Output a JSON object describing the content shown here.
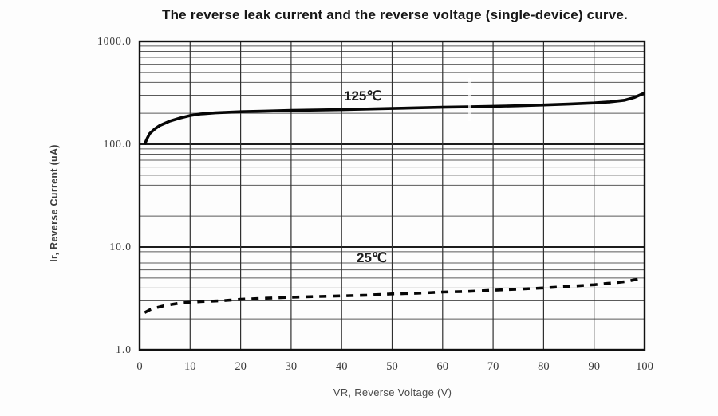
{
  "title": "The reverse leak current and the reverse voltage (single-device) curve.",
  "chart_data": {
    "type": "line",
    "title": "The reverse leak current and the reverse voltage (single-device) curve.",
    "xlabel": "VR, Reverse Voltage (V)",
    "ylabel": "Ir, Reverse Current (uA)",
    "x_axis": {
      "min": 0,
      "max": 100,
      "scale": "linear",
      "tick_labels": [
        "0",
        "10",
        "20",
        "30",
        "40",
        "50",
        "60",
        "70",
        "80",
        "90",
        "100"
      ],
      "tick_values": [
        0,
        10,
        20,
        30,
        40,
        50,
        60,
        70,
        80,
        90,
        100
      ]
    },
    "y_axis": {
      "min": 1,
      "max": 1000,
      "scale": "log",
      "tick_labels": [
        "1000.0",
        "100.0",
        "10.0",
        "1.0"
      ],
      "tick_values": [
        1000,
        100,
        10,
        1
      ]
    },
    "grid": {
      "major_horizontal": [
        1,
        10,
        100,
        1000
      ],
      "minor_horizontal_multipliers": [
        2,
        3,
        4,
        5,
        6,
        7,
        8,
        9
      ],
      "vertical_every": 10,
      "major_color": "#1c1c1c",
      "minor_color": "#5a5a5a",
      "vertical_color": "#303030"
    },
    "series": [
      {
        "name": "125C",
        "label": "125℃",
        "style": "solid",
        "color": "#060606",
        "points": [
          [
            1,
            100
          ],
          [
            1.5,
            114
          ],
          [
            2,
            127
          ],
          [
            3,
            141
          ],
          [
            4,
            152
          ],
          [
            5,
            160
          ],
          [
            6,
            168
          ],
          [
            8,
            180
          ],
          [
            10,
            190
          ],
          [
            12,
            197
          ],
          [
            15,
            202
          ],
          [
            20,
            207
          ],
          [
            25,
            210
          ],
          [
            30,
            213
          ],
          [
            35,
            215
          ],
          [
            40,
            217
          ],
          [
            45,
            220
          ],
          [
            50,
            223
          ],
          [
            55,
            226
          ],
          [
            60,
            229
          ],
          [
            65,
            231
          ],
          [
            70,
            234
          ],
          [
            75,
            237
          ],
          [
            80,
            241
          ],
          [
            85,
            246
          ],
          [
            90,
            252
          ],
          [
            93,
            258
          ],
          [
            96,
            268
          ],
          [
            98,
            285
          ],
          [
            100,
            315
          ]
        ]
      },
      {
        "name": "25C",
        "label": "25℃",
        "style": "dashed",
        "color": "#060606",
        "points": [
          [
            1,
            2.3
          ],
          [
            2,
            2.45
          ],
          [
            3,
            2.55
          ],
          [
            5,
            2.7
          ],
          [
            8,
            2.85
          ],
          [
            12,
            2.95
          ],
          [
            16,
            3.0
          ],
          [
            20,
            3.1
          ],
          [
            25,
            3.18
          ],
          [
            30,
            3.25
          ],
          [
            35,
            3.3
          ],
          [
            40,
            3.35
          ],
          [
            45,
            3.4
          ],
          [
            50,
            3.5
          ],
          [
            55,
            3.55
          ],
          [
            60,
            3.65
          ],
          [
            65,
            3.7
          ],
          [
            70,
            3.8
          ],
          [
            75,
            3.9
          ],
          [
            80,
            4.0
          ],
          [
            85,
            4.15
          ],
          [
            90,
            4.3
          ],
          [
            93,
            4.45
          ],
          [
            96,
            4.6
          ],
          [
            100,
            5.0
          ]
        ]
      }
    ],
    "legend": "inline text annotations next to curves"
  }
}
